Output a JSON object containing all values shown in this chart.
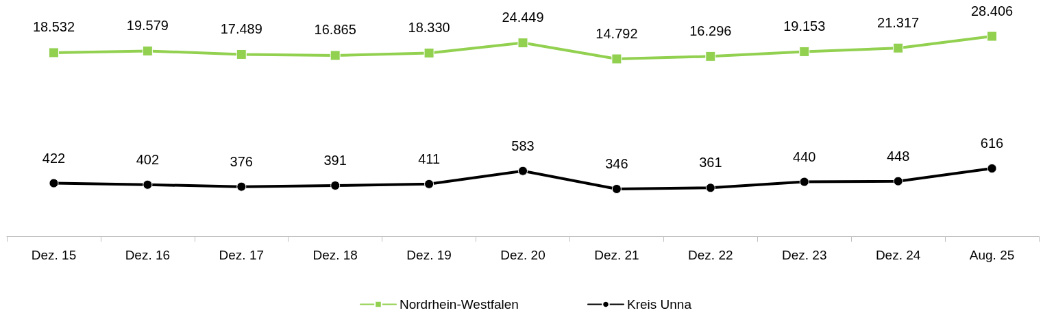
{
  "chart_data": [
    {
      "type": "line",
      "categories": [
        null,
        null,
        null,
        null,
        null,
        null,
        null,
        null,
        null,
        null,
        null
      ],
      "series": [
        {
          "name": "Nordrhein-Westfalen",
          "color": "#92d050",
          "marker": "square",
          "values": [
            18532,
            19579,
            17489,
            16865,
            18330,
            24449,
            14792,
            16296,
            19153,
            21317,
            28406
          ],
          "value_labels": [
            "18.532",
            "19.579",
            "17.489",
            "16.865",
            "18.330",
            "24.449",
            "14.792",
            "16.296",
            "19.153",
            "21.317",
            "28.406"
          ]
        }
      ],
      "tick_labels": false,
      "legend": "bottom",
      "line_style": "solid"
    },
    {
      "type": "line",
      "categories": [
        "Dez. 15",
        "Dez. 16",
        "Dez. 17",
        "Dez. 18",
        "Dez. 19",
        "Dez. 20",
        "Dez. 21",
        "Dez. 22",
        "Dez. 23",
        "Dez. 24",
        "Aug. 25"
      ],
      "series": [
        {
          "name": "Kreis Unna",
          "color": "#000000",
          "marker": "circle",
          "values": [
            422,
            402,
            376,
            391,
            411,
            583,
            346,
            361,
            440,
            448,
            616
          ],
          "value_labels": [
            "422",
            "402",
            "376",
            "391",
            "411",
            "583",
            "346",
            "361",
            "440",
            "448",
            "616"
          ]
        }
      ],
      "tick_labels": "x",
      "legend": "bottom",
      "line_style": "solid"
    }
  ]
}
